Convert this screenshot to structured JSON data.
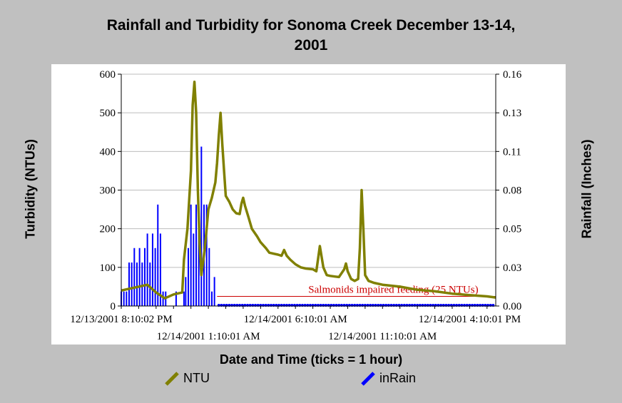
{
  "chart_data": {
    "type": "line",
    "title": "Rainfall and Turbidity for Sonoma Creek December 13-14, 2001",
    "title_line1": "Rainfall and Turbidity for Sonoma Creek December 13-14,",
    "title_line2": "2001",
    "xlabel": "Date and Time (ticks = 1 hour)",
    "ylabel_left": "Turbidity (NTUs)",
    "ylabel_right": "Rainfall (Inches)",
    "ylim_left": [
      0,
      600
    ],
    "ylim_right": [
      0,
      0.16
    ],
    "yticks_left": [
      "0",
      "100",
      "200",
      "300",
      "400",
      "500",
      "600"
    ],
    "yticks_right": [
      "0.00",
      "0.03",
      "0.05",
      "0.08",
      "0.11",
      "0.13",
      "0.16"
    ],
    "x_hours_range": [
      0,
      21.5
    ],
    "x_tick_labels": [
      {
        "hour": 0,
        "label": "12/13/2001 8:10:02 PM",
        "row": 1
      },
      {
        "hour": 5,
        "label": "12/14/2001 1:10:01 AM",
        "row": 2
      },
      {
        "hour": 10,
        "label": "12/14/2001 6:10:01 AM",
        "row": 1
      },
      {
        "hour": 15,
        "label": "12/14/2001 11:10:01 AM",
        "row": 2
      },
      {
        "hour": 20,
        "label": "12/14/2001 4:10:01 PM",
        "row": 1
      }
    ],
    "grid": true,
    "legend_placement": "bottom",
    "reference_line": {
      "value": 25,
      "label": "Salmonids impaired feeding (25 NTUs)",
      "color": "#cc0000"
    },
    "series": [
      {
        "name": "NTU",
        "axis": "left",
        "color": "#808000",
        "points": [
          [
            0,
            40
          ],
          [
            0.5,
            45
          ],
          [
            1,
            50
          ],
          [
            1.5,
            55
          ],
          [
            2,
            35
          ],
          [
            2.5,
            20
          ],
          [
            3,
            30
          ],
          [
            3.5,
            35
          ],
          [
            3.6,
            120
          ],
          [
            3.8,
            200
          ],
          [
            4,
            350
          ],
          [
            4.1,
            520
          ],
          [
            4.2,
            580
          ],
          [
            4.3,
            500
          ],
          [
            4.4,
            300
          ],
          [
            4.5,
            160
          ],
          [
            4.6,
            80
          ],
          [
            4.8,
            150
          ],
          [
            5.0,
            250
          ],
          [
            5.2,
            280
          ],
          [
            5.4,
            320
          ],
          [
            5.5,
            370
          ],
          [
            5.6,
            440
          ],
          [
            5.7,
            500
          ],
          [
            5.8,
            420
          ],
          [
            5.9,
            350
          ],
          [
            6.0,
            285
          ],
          [
            6.2,
            270
          ],
          [
            6.4,
            250
          ],
          [
            6.6,
            240
          ],
          [
            6.8,
            238
          ],
          [
            6.9,
            265
          ],
          [
            7.0,
            280
          ],
          [
            7.1,
            260
          ],
          [
            7.3,
            230
          ],
          [
            7.5,
            200
          ],
          [
            7.8,
            180
          ],
          [
            8.0,
            165
          ],
          [
            8.3,
            150
          ],
          [
            8.5,
            138
          ],
          [
            8.8,
            135
          ],
          [
            9.0,
            133
          ],
          [
            9.2,
            130
          ],
          [
            9.35,
            145
          ],
          [
            9.5,
            130
          ],
          [
            9.7,
            120
          ],
          [
            10.0,
            108
          ],
          [
            10.3,
            100
          ],
          [
            10.6,
            97
          ],
          [
            11.0,
            95
          ],
          [
            11.2,
            90
          ],
          [
            11.4,
            155
          ],
          [
            11.6,
            100
          ],
          [
            11.8,
            80
          ],
          [
            12.0,
            78
          ],
          [
            12.3,
            76
          ],
          [
            12.5,
            75
          ],
          [
            12.8,
            95
          ],
          [
            12.9,
            110
          ],
          [
            13.0,
            90
          ],
          [
            13.2,
            70
          ],
          [
            13.4,
            65
          ],
          [
            13.6,
            70
          ],
          [
            13.7,
            150
          ],
          [
            13.8,
            300
          ],
          [
            13.9,
            200
          ],
          [
            14.0,
            80
          ],
          [
            14.2,
            65
          ],
          [
            14.5,
            60
          ],
          [
            15,
            55
          ],
          [
            16,
            50
          ],
          [
            17,
            42
          ],
          [
            18,
            38
          ],
          [
            19,
            32
          ],
          [
            20,
            28
          ],
          [
            21,
            25
          ],
          [
            21.5,
            22
          ]
        ]
      },
      {
        "name": "inRain",
        "axis": "right",
        "color": "#0000ff",
        "bars": [
          [
            0,
            0.01
          ],
          [
            0.15,
            0.01
          ],
          [
            0.3,
            0.01
          ],
          [
            0.45,
            0.03
          ],
          [
            0.6,
            0.03
          ],
          [
            0.75,
            0.04
          ],
          [
            0.9,
            0.03
          ],
          [
            1.05,
            0.04
          ],
          [
            1.2,
            0.03
          ],
          [
            1.35,
            0.04
          ],
          [
            1.5,
            0.05
          ],
          [
            1.65,
            0.03
          ],
          [
            1.8,
            0.05
          ],
          [
            1.95,
            0.04
          ],
          [
            2.1,
            0.07
          ],
          [
            2.25,
            0.05
          ],
          [
            2.4,
            0.01
          ],
          [
            2.55,
            0.01
          ],
          [
            2.7,
            0.0
          ],
          [
            2.85,
            0.0
          ],
          [
            3.0,
            0.0
          ],
          [
            3.15,
            0.01
          ],
          [
            3.3,
            0.0
          ],
          [
            3.45,
            0.0
          ],
          [
            3.6,
            0.01
          ],
          [
            3.7,
            0.02
          ],
          [
            3.85,
            0.04
          ],
          [
            4.0,
            0.07
          ],
          [
            4.15,
            0.05
          ],
          [
            4.3,
            0.07
          ],
          [
            4.45,
            0.06
          ],
          [
            4.6,
            0.11
          ],
          [
            4.75,
            0.07
          ],
          [
            4.9,
            0.07
          ],
          [
            5.05,
            0.04
          ],
          [
            5.2,
            0.01
          ],
          [
            5.35,
            0.02
          ],
          [
            5.5,
            0.0
          ]
        ]
      }
    ]
  }
}
